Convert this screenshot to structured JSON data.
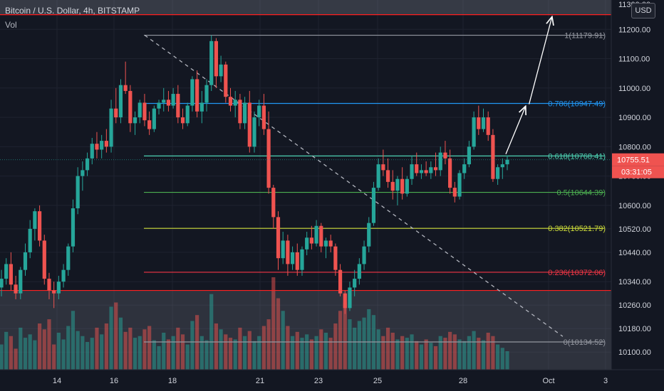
{
  "header": {
    "symbol": "Bitcoin / U.S. Dollar, 4h, BITSTAMP",
    "indicator": "Vol"
  },
  "currency_button": "USD",
  "colors": {
    "background": "#131722",
    "bull": "#26a69a",
    "bear": "#ef5350",
    "grid": "#1f2330",
    "axis_text": "#d1d4dc",
    "resistance_line": "#ff1f1f",
    "support_line": "#ff1f1f"
  },
  "price_tag": {
    "price": "10755.51",
    "countdown": "03:31:05"
  },
  "chart_data": {
    "type": "candlestick",
    "title": "Bitcoin / U.S. Dollar, 4h, BITSTAMP",
    "x_axis": {
      "ticks": [
        "14",
        "16",
        "18",
        "21",
        "23",
        "25",
        "28",
        "Oct",
        "3"
      ]
    },
    "y_axis": {
      "range": [
        10040,
        11300
      ],
      "ticks": [
        11200,
        11100,
        11000,
        10900,
        10800,
        10700,
        10600,
        10520,
        10440,
        10340,
        10260,
        10180,
        10100
      ],
      "tick_labels": [
        "11200.00",
        "11100.00",
        "11000.00",
        "10900.00",
        "10800.00",
        "10700.00",
        "10600.00",
        "10520.00",
        "10440.00",
        "10340.00",
        "10260.00",
        "10180.00",
        "10100.00"
      ],
      "top_partial_label": "11300.00"
    },
    "horizontal_levels": [
      11250,
      10310
    ],
    "fibonacci": [
      {
        "label": "1(11179.91)",
        "value": 11179.91,
        "color": "#9598a1"
      },
      {
        "label": "0.786(10947.49)",
        "value": 10947.49,
        "color": "#2196f3"
      },
      {
        "label": "0.618(10768.41)",
        "value": 10768.41,
        "color": "#4dd0b1"
      },
      {
        "label": "0.5(10644.39)",
        "value": 10644.39,
        "color": "#4caf50"
      },
      {
        "label": "0.382(10521.79)",
        "value": 10521.79,
        "color": "#cddc39"
      },
      {
        "label": "0.236(10372.06)",
        "value": 10372.06,
        "color": "#f23645"
      },
      {
        "label": "0(10134.52)",
        "value": 10134.52,
        "color": "#9598a1"
      }
    ],
    "candles": [
      [
        10320,
        10380,
        10290,
        10350
      ],
      [
        10350,
        10420,
        10330,
        10400
      ],
      [
        10400,
        10440,
        10310,
        10330
      ],
      [
        10330,
        10360,
        10280,
        10300
      ],
      [
        10300,
        10390,
        10280,
        10380
      ],
      [
        10380,
        10470,
        10360,
        10440
      ],
      [
        10440,
        10550,
        10420,
        10520
      ],
      [
        10520,
        10590,
        10480,
        10580
      ],
      [
        10580,
        10600,
        10460,
        10480
      ],
      [
        10480,
        10500,
        10330,
        10350
      ],
      [
        10350,
        10370,
        10280,
        10310
      ],
      [
        10310,
        10340,
        10250,
        10300
      ],
      [
        10300,
        10360,
        10280,
        10340
      ],
      [
        10340,
        10400,
        10320,
        10380
      ],
      [
        10380,
        10470,
        10360,
        10460
      ],
      [
        10460,
        10620,
        10440,
        10590
      ],
      [
        10590,
        10730,
        10570,
        10700
      ],
      [
        10700,
        10750,
        10650,
        10720
      ],
      [
        10720,
        10780,
        10700,
        10760
      ],
      [
        10760,
        10830,
        10740,
        10810
      ],
      [
        10810,
        10850,
        10760,
        10790
      ],
      [
        10790,
        10840,
        10760,
        10820
      ],
      [
        10820,
        10860,
        10780,
        10800
      ],
      [
        10800,
        10960,
        10780,
        10930
      ],
      [
        10930,
        11000,
        10880,
        10900
      ],
      [
        10900,
        11030,
        10880,
        11010
      ],
      [
        11010,
        11090,
        10980,
        10990
      ],
      [
        10990,
        11010,
        10850,
        10880
      ],
      [
        10880,
        10920,
        10840,
        10900
      ],
      [
        10900,
        10960,
        10880,
        10950
      ],
      [
        10950,
        10980,
        10870,
        10890
      ],
      [
        10890,
        10920,
        10840,
        10860
      ],
      [
        10860,
        10940,
        10850,
        10930
      ],
      [
        10930,
        10960,
        10910,
        10950
      ],
      [
        10950,
        11000,
        10920,
        10960
      ],
      [
        10960,
        10990,
        10920,
        10940
      ],
      [
        10940,
        11000,
        10930,
        10980
      ],
      [
        10980,
        11010,
        10880,
        10900
      ],
      [
        10900,
        10930,
        10860,
        10880
      ],
      [
        10880,
        10950,
        10870,
        10940
      ],
      [
        10940,
        11040,
        10920,
        11030
      ],
      [
        11030,
        11060,
        10900,
        10920
      ],
      [
        10920,
        10990,
        10880,
        10950
      ],
      [
        10950,
        11030,
        10920,
        11010
      ],
      [
        11010,
        11180,
        10990,
        11160
      ],
      [
        11160,
        11170,
        11000,
        11040
      ],
      [
        11040,
        11110,
        11020,
        11080
      ],
      [
        11080,
        11090,
        10950,
        10970
      ],
      [
        10970,
        11000,
        10920,
        10940
      ],
      [
        10940,
        10990,
        10900,
        10960
      ],
      [
        10960,
        10980,
        10860,
        10880
      ],
      [
        10880,
        10970,
        10860,
        10950
      ],
      [
        10950,
        10990,
        10780,
        10800
      ],
      [
        10800,
        10920,
        10780,
        10900
      ],
      [
        10900,
        10960,
        10870,
        10940
      ],
      [
        10940,
        10980,
        10840,
        10860
      ],
      [
        10860,
        10920,
        10640,
        10660
      ],
      [
        10660,
        10670,
        10520,
        10560
      ],
      [
        10560,
        10580,
        10380,
        10420
      ],
      [
        10420,
        10510,
        10400,
        10480
      ],
      [
        10480,
        10500,
        10360,
        10400
      ],
      [
        10400,
        10460,
        10380,
        10440
      ],
      [
        10440,
        10470,
        10360,
        10380
      ],
      [
        10380,
        10460,
        10360,
        10450
      ],
      [
        10450,
        10510,
        10430,
        10490
      ],
      [
        10490,
        10530,
        10450,
        10470
      ],
      [
        10470,
        10550,
        10460,
        10530
      ],
      [
        10530,
        10540,
        10440,
        10460
      ],
      [
        10460,
        10490,
        10420,
        10480
      ],
      [
        10480,
        10500,
        10440,
        10460
      ],
      [
        10460,
        10470,
        10360,
        10380
      ],
      [
        10380,
        10400,
        10290,
        10300
      ],
      [
        10300,
        10310,
        10230,
        10250
      ],
      [
        10250,
        10340,
        10240,
        10320
      ],
      [
        10320,
        10380,
        10290,
        10350
      ],
      [
        10350,
        10420,
        10330,
        10400
      ],
      [
        10400,
        10480,
        10380,
        10460
      ],
      [
        10460,
        10560,
        10440,
        10540
      ],
      [
        10540,
        10680,
        10530,
        10660
      ],
      [
        10660,
        10760,
        10650,
        10740
      ],
      [
        10740,
        10790,
        10700,
        10720
      ],
      [
        10720,
        10760,
        10660,
        10680
      ],
      [
        10680,
        10720,
        10620,
        10650
      ],
      [
        10650,
        10700,
        10600,
        10690
      ],
      [
        10690,
        10730,
        10620,
        10640
      ],
      [
        10640,
        10700,
        10630,
        10690
      ],
      [
        10690,
        10770,
        10670,
        10740
      ],
      [
        10740,
        10780,
        10700,
        10710
      ],
      [
        10710,
        10740,
        10690,
        10720
      ],
      [
        10720,
        10750,
        10700,
        10710
      ],
      [
        10710,
        10750,
        10690,
        10730
      ],
      [
        10730,
        10780,
        10700,
        10720
      ],
      [
        10720,
        10800,
        10700,
        10780
      ],
      [
        10780,
        10820,
        10740,
        10760
      ],
      [
        10760,
        10790,
        10640,
        10660
      ],
      [
        10660,
        10680,
        10610,
        10630
      ],
      [
        10630,
        10720,
        10620,
        10710
      ],
      [
        10710,
        10760,
        10690,
        10740
      ],
      [
        10740,
        10820,
        10730,
        10800
      ],
      [
        10800,
        10920,
        10790,
        10900
      ],
      [
        10900,
        10940,
        10840,
        10860
      ],
      [
        10860,
        10930,
        10850,
        10900
      ],
      [
        10900,
        10920,
        10820,
        10840
      ],
      [
        10840,
        10860,
        10680,
        10690
      ],
      [
        10690,
        10740,
        10670,
        10730
      ],
      [
        10730,
        10760,
        10690,
        10740
      ],
      [
        10740,
        10770,
        10720,
        10755.51
      ]
    ],
    "volume": [
      30,
      45,
      40,
      25,
      50,
      38,
      42,
      35,
      55,
      48,
      60,
      30,
      44,
      36,
      52,
      70,
      46,
      40,
      33,
      38,
      50,
      42,
      55,
      75,
      80,
      62,
      45,
      50,
      38,
      40,
      48,
      52,
      35,
      28,
      44,
      36,
      40,
      50,
      42,
      30,
      58,
      65,
      40,
      35,
      90,
      55,
      48,
      42,
      38,
      36,
      50,
      40,
      46,
      34,
      40,
      52,
      60,
      110,
      85,
      70,
      52,
      40,
      45,
      38,
      42,
      36,
      40,
      48,
      44,
      38,
      55,
      70,
      80,
      60,
      50,
      58,
      62,
      72,
      65,
      48,
      40,
      50,
      44,
      36,
      40,
      38,
      42,
      34,
      30,
      36,
      32,
      28,
      40,
      38,
      45,
      42,
      36,
      34,
      40,
      46,
      38,
      35,
      44,
      40,
      30,
      26,
      22
    ],
    "annotations": {
      "trend_line": [
        [
          0.19,
          11180
        ],
        [
          0.84,
          10134
        ]
      ],
      "projection_arrows": [
        [
          [
            0.765,
            10770
          ],
          [
            0.79,
            10945
          ]
        ],
        [
          [
            0.8,
            10940
          ],
          [
            0.83,
            11250
          ]
        ]
      ]
    }
  }
}
